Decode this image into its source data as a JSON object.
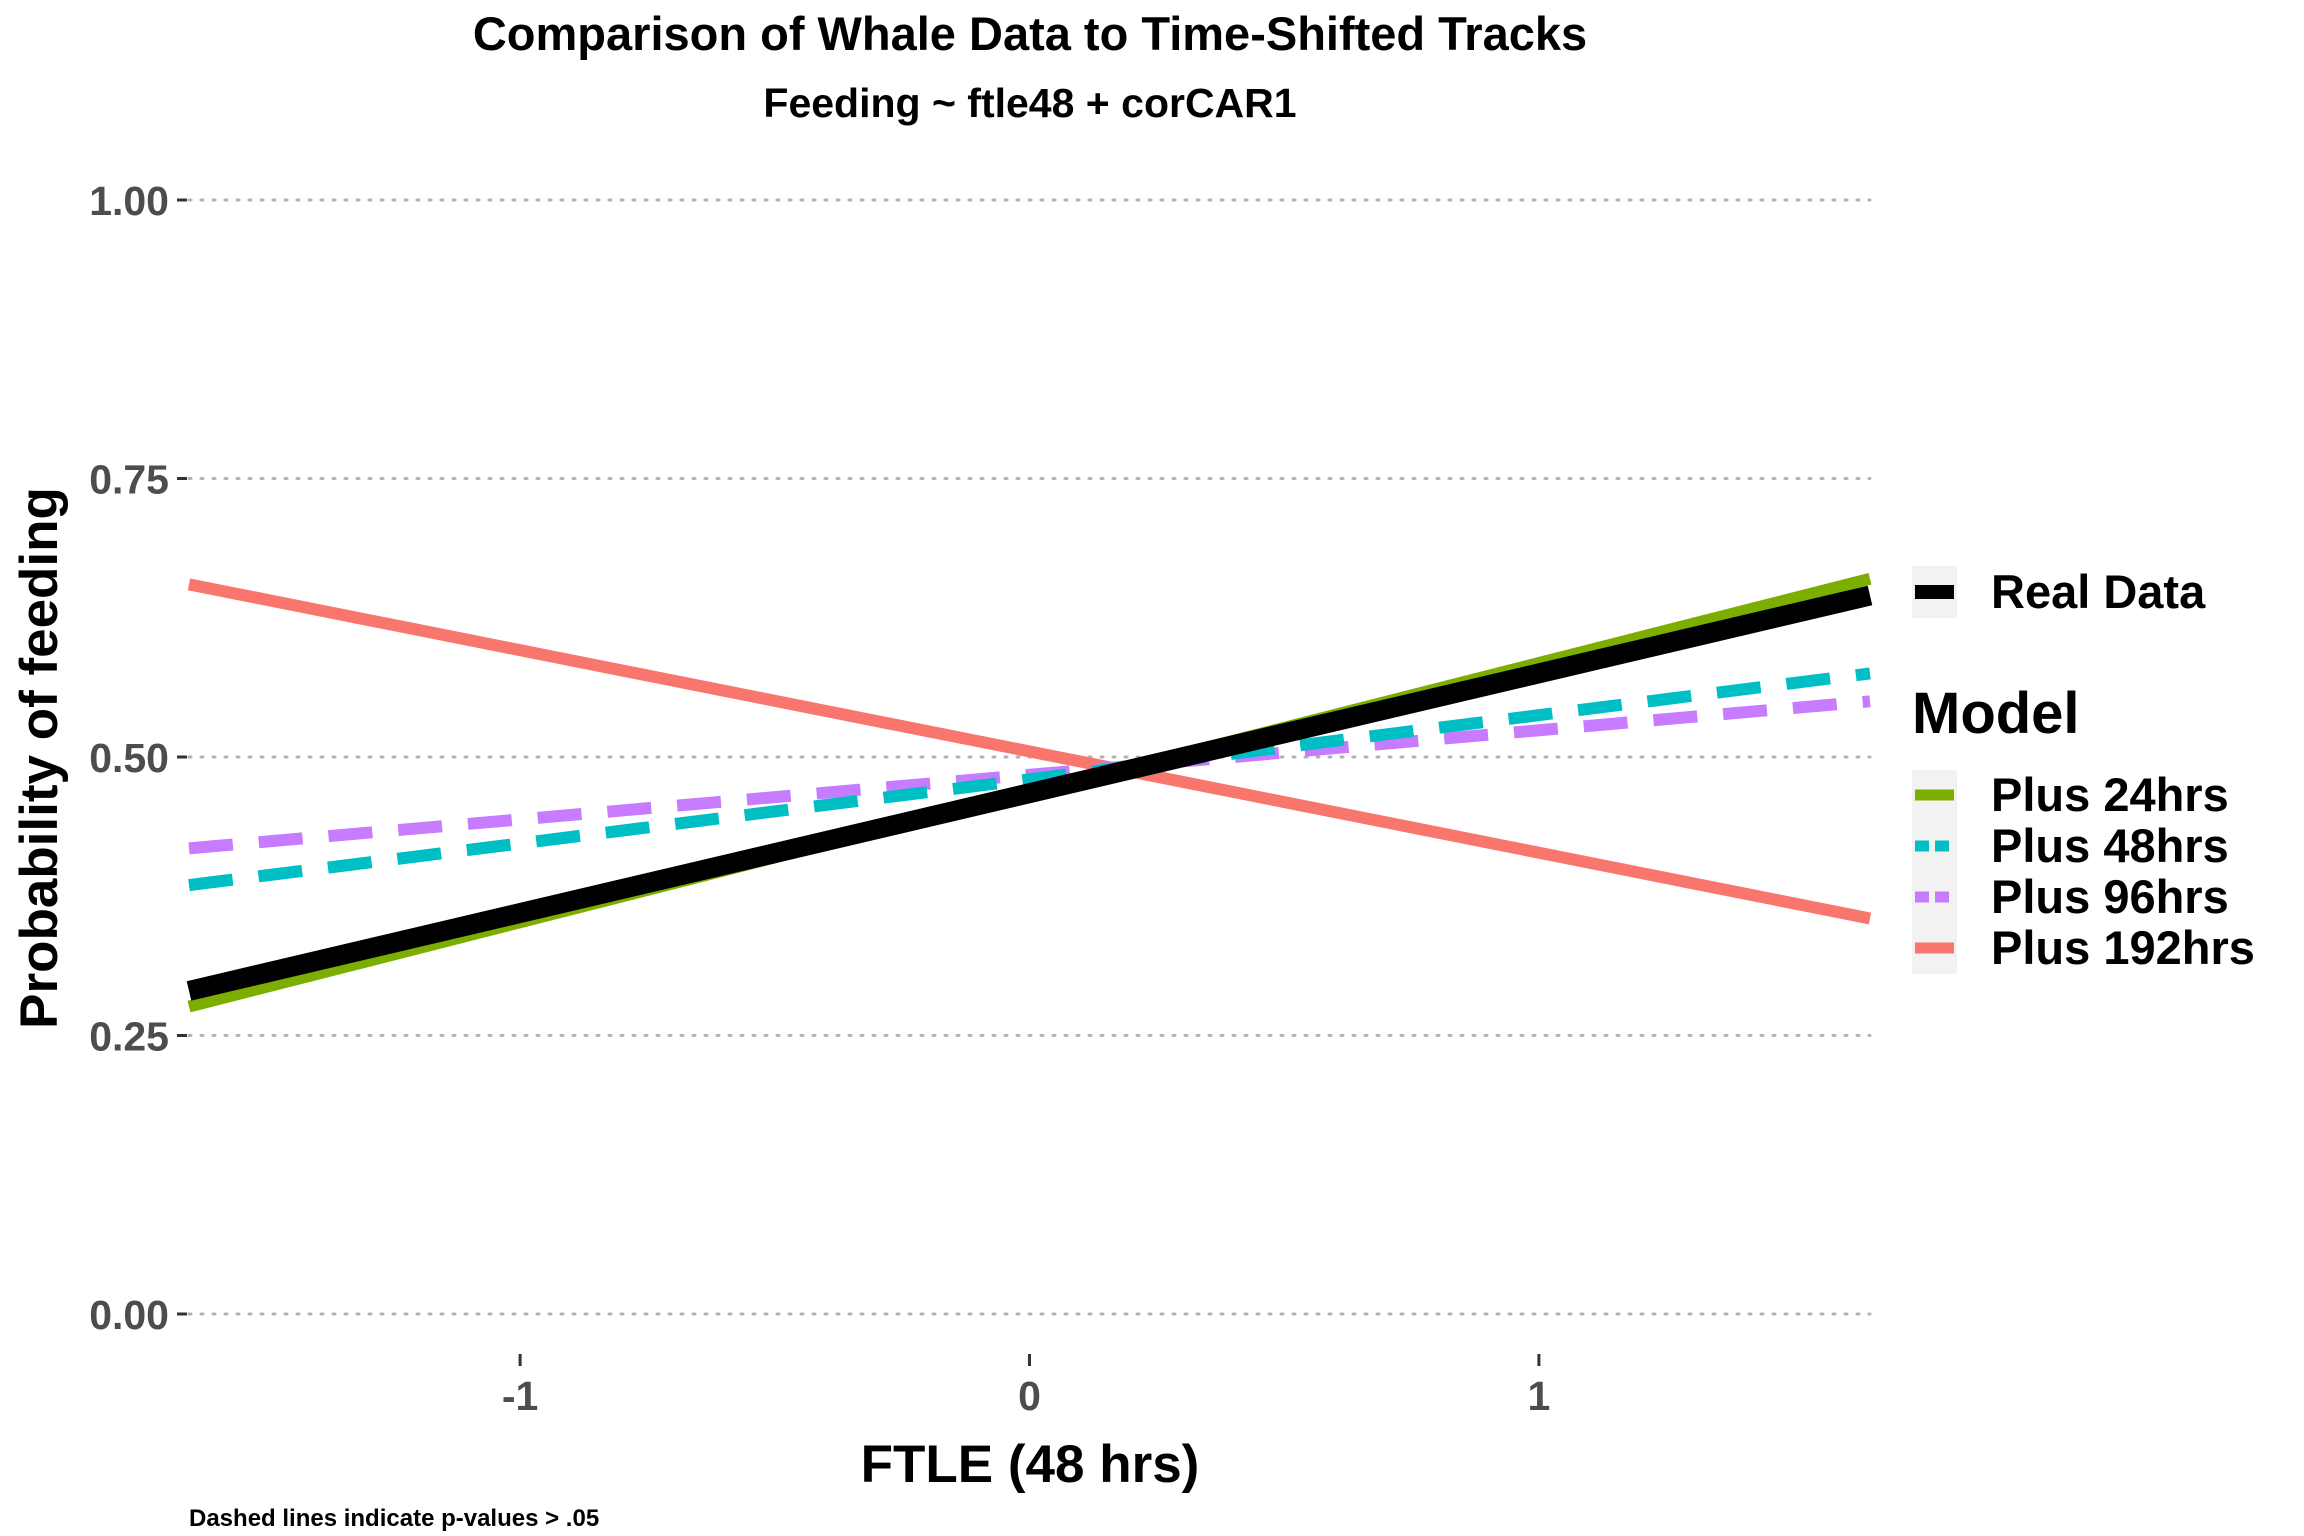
{
  "chart_data": {
    "type": "line",
    "title": "Comparison of Whale Data to Time-Shifted Tracks",
    "subtitle": "Feeding ~ ftle48 + corCAR1",
    "xlabel": "FTLE (48 hrs)",
    "ylabel": "Probability of feeding",
    "caption": "Dashed lines indicate p-values > .05",
    "xlim": [
      -1.65,
      1.65
    ],
    "ylim": [
      0,
      1
    ],
    "x_ticks": [
      -1,
      0,
      1
    ],
    "x_tick_labels": [
      "-1",
      "0",
      "1"
    ],
    "y_ticks": [
      0,
      0.25,
      0.5,
      0.75,
      1
    ],
    "y_tick_labels": [
      "0.00",
      "0.25",
      "0.50",
      "0.75",
      "1.00"
    ],
    "grid": "horizontal dotted",
    "legend": {
      "position": "right",
      "real_label": "Real Data",
      "title": "Model"
    },
    "real_series": {
      "name": "Real Data",
      "color": "#000000",
      "dashed": false,
      "x": [
        -1.65,
        1.65
      ],
      "y": [
        0.29,
        0.645
      ]
    },
    "series": [
      {
        "name": "Plus 24hrs",
        "color": "#7CAE00",
        "dashed": false,
        "x": [
          -1.65,
          1.65
        ],
        "y": [
          0.276,
          0.66
        ]
      },
      {
        "name": "Plus 48hrs",
        "color": "#00BFC4",
        "dashed": true,
        "x": [
          -1.65,
          1.65
        ],
        "y": [
          0.385,
          0.575
        ]
      },
      {
        "name": "Plus 96hrs",
        "color": "#C77CFF",
        "dashed": true,
        "x": [
          -1.65,
          1.65
        ],
        "y": [
          0.418,
          0.55
        ]
      },
      {
        "name": "Plus 192hrs",
        "color": "#F8766D",
        "dashed": false,
        "x": [
          -1.65,
          1.65
        ],
        "y": [
          0.655,
          0.355
        ]
      }
    ]
  }
}
